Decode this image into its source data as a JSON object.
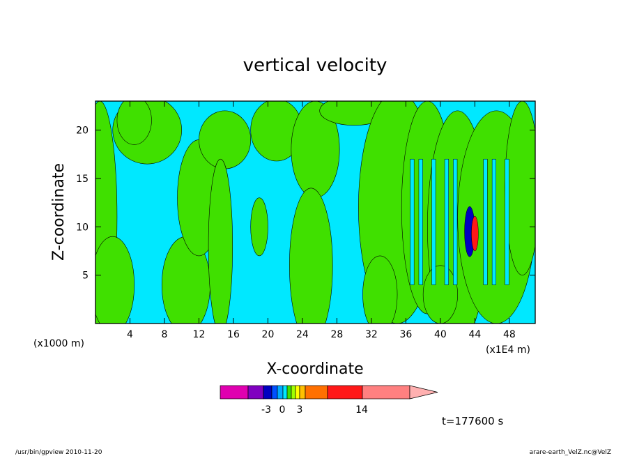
{
  "chart_data": {
    "type": "heatmap",
    "title": "vertical velocity",
    "xlabel": "X-coordinate",
    "ylabel": "Z-coordinate",
    "x_units_left": "(x1000 m)",
    "x_units_right": "(x1E4 m)",
    "x_ticks": [
      "4",
      "8",
      "12",
      "16",
      "20",
      "24",
      "28",
      "32",
      "36",
      "40",
      "44",
      "48"
    ],
    "y_ticks": [
      "5",
      "10",
      "15",
      "20"
    ],
    "xlim": [
      0,
      51
    ],
    "ylim": [
      0,
      23
    ],
    "colorbar": {
      "labels": [
        {
          "text": "-3",
          "value": -3
        },
        {
          "text": "0",
          "value": 0
        },
        {
          "text": "3",
          "value": 3
        },
        {
          "text": "14",
          "value": 14
        }
      ],
      "colors": [
        "#e000b0",
        "#8000c0",
        "#0000c0",
        "#0050ff",
        "#00aaff",
        "#00e8ff",
        "#40e000",
        "#a0ff00",
        "#ffff00",
        "#ffc000",
        "#ff7000",
        "#ff1818",
        "#ff8080",
        "#ffb0b0"
      ],
      "extend": "right"
    },
    "field_colors": {
      "background": "#00e8ff",
      "positive": "#40e000",
      "strong_positive": "#ff1818",
      "strong_negative": "#0000c0"
    },
    "time_label": "t=177600 s"
  },
  "footer": {
    "left": "/usr/bin/gpview   2010-11-20",
    "right": "arare-earth_VelZ.nc@VelZ"
  }
}
